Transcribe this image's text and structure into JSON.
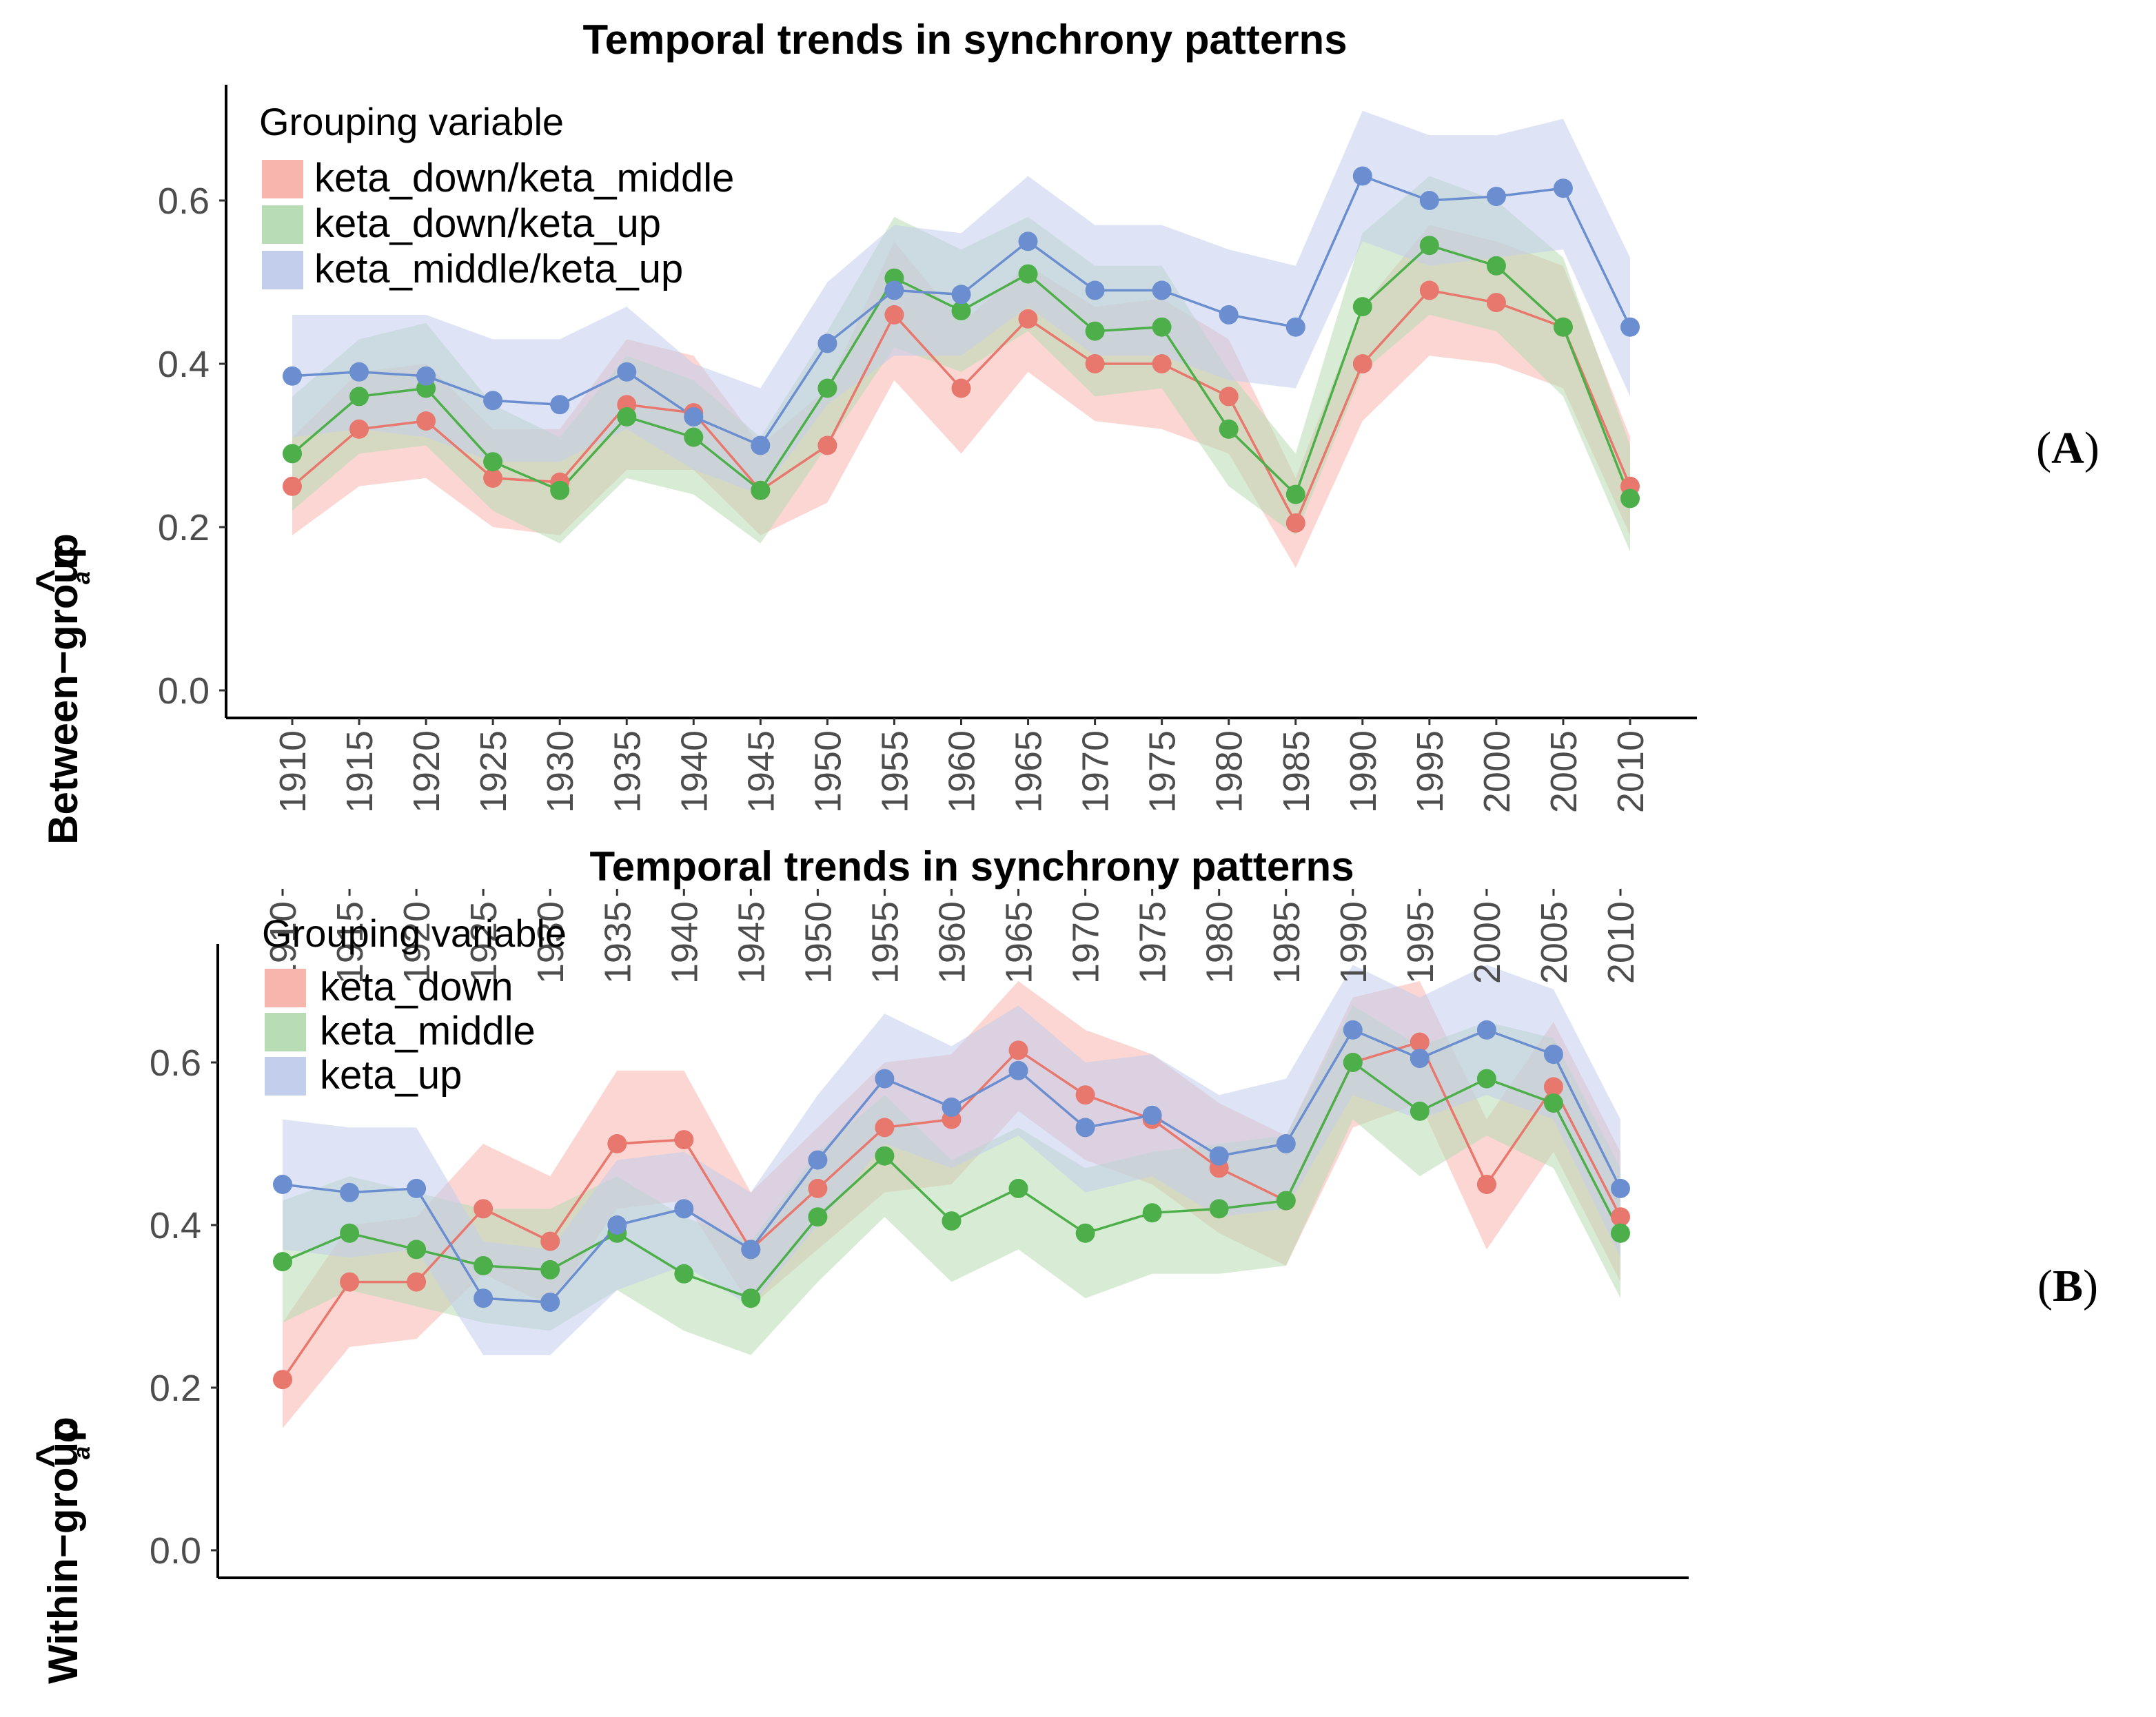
{
  "panels": [
    {
      "title": "Temporal trends in synchrony patterns",
      "ylabel": "Between−group",
      "ylabel_hat": "^",
      "ylabel_sub": "a",
      "ylabel_var": "c",
      "panel_label_open": "(",
      "panel_label_letter": "A",
      "panel_label_close": ")",
      "legend_title": "Grouping variable"
    },
    {
      "title": "Temporal trends in synchrony patterns",
      "ylabel": "Within−group",
      "ylabel_hat": "^",
      "ylabel_sub": "a",
      "ylabel_var": "c",
      "panel_label_open": "(",
      "panel_label_letter": "B",
      "panel_label_close": ")",
      "legend_title": "Grouping variable"
    }
  ],
  "chart_data": [
    {
      "type": "line",
      "title": "Temporal trends in synchrony patterns",
      "xlabel": "",
      "ylabel": "Between-group ac",
      "ylim": [
        -0.03,
        0.74
      ],
      "yticks": [
        "0.0",
        "0.2",
        "0.4",
        "0.6"
      ],
      "ytick_values": [
        0.0,
        0.2,
        0.4,
        0.6
      ],
      "legend_title": "Grouping variable",
      "legend_position": "top-left",
      "categories": [
        "1910",
        "1915",
        "1920",
        "1925",
        "1930",
        "1935",
        "1940",
        "1945",
        "1950",
        "1955",
        "1960",
        "1965",
        "1970",
        "1975",
        "1980",
        "1985",
        "1990",
        "1995",
        "2000",
        "2005",
        "2010"
      ],
      "series": [
        {
          "name": "keta_down/keta_middle",
          "line_color": "#e8776d",
          "band_color": "#f7b5ad",
          "values": [
            0.25,
            0.32,
            0.33,
            0.26,
            0.255,
            0.35,
            0.34,
            0.245,
            0.3,
            0.46,
            0.37,
            0.455,
            0.4,
            0.4,
            0.36,
            0.205,
            0.4,
            0.49,
            0.475,
            0.445,
            0.25
          ],
          "lower": [
            0.19,
            0.25,
            0.26,
            0.2,
            0.19,
            0.27,
            0.27,
            0.19,
            0.23,
            0.38,
            0.29,
            0.39,
            0.33,
            0.32,
            0.29,
            0.15,
            0.33,
            0.41,
            0.4,
            0.37,
            0.19
          ],
          "upper": [
            0.31,
            0.39,
            0.4,
            0.32,
            0.32,
            0.43,
            0.41,
            0.3,
            0.37,
            0.55,
            0.45,
            0.52,
            0.47,
            0.48,
            0.43,
            0.26,
            0.47,
            0.57,
            0.55,
            0.52,
            0.31
          ]
        },
        {
          "name": "keta_down/keta_up",
          "line_color": "#4daf4a",
          "band_color": "#b8dcb3",
          "values": [
            0.29,
            0.36,
            0.37,
            0.28,
            0.245,
            0.335,
            0.31,
            0.245,
            0.37,
            0.505,
            0.465,
            0.51,
            0.44,
            0.445,
            0.32,
            0.24,
            0.47,
            0.545,
            0.52,
            0.445,
            0.235
          ],
          "lower": [
            0.22,
            0.29,
            0.3,
            0.22,
            0.18,
            0.26,
            0.24,
            0.18,
            0.3,
            0.42,
            0.39,
            0.44,
            0.36,
            0.37,
            0.25,
            0.19,
            0.39,
            0.46,
            0.44,
            0.36,
            0.17
          ],
          "upper": [
            0.36,
            0.43,
            0.45,
            0.35,
            0.31,
            0.41,
            0.38,
            0.31,
            0.44,
            0.58,
            0.54,
            0.58,
            0.52,
            0.52,
            0.39,
            0.29,
            0.56,
            0.63,
            0.6,
            0.53,
            0.3
          ]
        },
        {
          "name": "keta_middle/keta_up",
          "line_color": "#6a8ecf",
          "band_color": "#c3cdec",
          "values": [
            0.385,
            0.39,
            0.385,
            0.355,
            0.35,
            0.39,
            0.335,
            0.3,
            0.425,
            0.49,
            0.485,
            0.55,
            0.49,
            0.49,
            0.46,
            0.445,
            0.63,
            0.6,
            0.605,
            0.615,
            0.445
          ],
          "lower": [
            0.31,
            0.32,
            0.31,
            0.28,
            0.28,
            0.32,
            0.27,
            0.24,
            0.35,
            0.41,
            0.41,
            0.47,
            0.41,
            0.41,
            0.38,
            0.37,
            0.55,
            0.52,
            0.53,
            0.54,
            0.36
          ],
          "upper": [
            0.46,
            0.46,
            0.46,
            0.43,
            0.43,
            0.47,
            0.4,
            0.37,
            0.5,
            0.57,
            0.56,
            0.63,
            0.57,
            0.57,
            0.54,
            0.52,
            0.71,
            0.68,
            0.68,
            0.7,
            0.53
          ]
        }
      ]
    },
    {
      "type": "line",
      "title": "Temporal trends in synchrony patterns",
      "xlabel": "",
      "ylabel": "Within-group ac",
      "ylim": [
        -0.03,
        0.74
      ],
      "yticks": [
        "0.0",
        "0.2",
        "0.4",
        "0.6"
      ],
      "ytick_values": [
        0.0,
        0.2,
        0.4,
        0.6
      ],
      "legend_title": "Grouping variable",
      "legend_position": "top-left",
      "categories": [
        "1910",
        "1915",
        "1920",
        "1925",
        "1930",
        "1935",
        "1940",
        "1945",
        "1950",
        "1955",
        "1960",
        "1965",
        "1970",
        "1975",
        "1980",
        "1985",
        "1990",
        "1995",
        "2000",
        "2005",
        "2010"
      ],
      "series": [
        {
          "name": "keta_down",
          "line_color": "#e8776d",
          "band_color": "#f7b5ad",
          "values": [
            0.21,
            0.33,
            0.33,
            0.42,
            0.38,
            0.5,
            0.505,
            0.37,
            0.445,
            0.52,
            0.53,
            0.615,
            0.56,
            0.53,
            0.47,
            0.43,
            0.6,
            0.625,
            0.45,
            0.57,
            0.41
          ],
          "lower": [
            0.15,
            0.25,
            0.26,
            0.34,
            0.3,
            0.42,
            0.43,
            0.3,
            0.37,
            0.44,
            0.45,
            0.54,
            0.48,
            0.45,
            0.39,
            0.35,
            0.52,
            0.55,
            0.37,
            0.49,
            0.33
          ],
          "upper": [
            0.28,
            0.4,
            0.41,
            0.5,
            0.46,
            0.59,
            0.59,
            0.44,
            0.52,
            0.6,
            0.61,
            0.7,
            0.64,
            0.61,
            0.55,
            0.51,
            0.68,
            0.7,
            0.53,
            0.65,
            0.49
          ]
        },
        {
          "name": "keta_middle",
          "line_color": "#4daf4a",
          "band_color": "#b8dcb3",
          "values": [
            0.355,
            0.39,
            0.37,
            0.35,
            0.345,
            0.39,
            0.34,
            0.31,
            0.41,
            0.485,
            0.405,
            0.445,
            0.39,
            0.415,
            0.42,
            0.43,
            0.6,
            0.54,
            0.58,
            0.55,
            0.39
          ],
          "lower": [
            0.28,
            0.32,
            0.3,
            0.28,
            0.27,
            0.32,
            0.27,
            0.24,
            0.33,
            0.41,
            0.33,
            0.37,
            0.31,
            0.34,
            0.34,
            0.35,
            0.53,
            0.46,
            0.51,
            0.47,
            0.31
          ],
          "upper": [
            0.43,
            0.46,
            0.44,
            0.42,
            0.42,
            0.46,
            0.41,
            0.38,
            0.49,
            0.56,
            0.48,
            0.52,
            0.47,
            0.49,
            0.5,
            0.51,
            0.67,
            0.62,
            0.65,
            0.63,
            0.47
          ]
        },
        {
          "name": "keta_up",
          "line_color": "#6a8ecf",
          "band_color": "#c3cdec",
          "values": [
            0.45,
            0.44,
            0.445,
            0.31,
            0.305,
            0.4,
            0.42,
            0.37,
            0.48,
            0.58,
            0.545,
            0.59,
            0.52,
            0.535,
            0.485,
            0.5,
            0.64,
            0.605,
            0.64,
            0.61,
            0.445
          ],
          "lower": [
            0.37,
            0.36,
            0.37,
            0.24,
            0.24,
            0.32,
            0.35,
            0.3,
            0.4,
            0.5,
            0.47,
            0.51,
            0.44,
            0.46,
            0.41,
            0.42,
            0.56,
            0.53,
            0.56,
            0.53,
            0.36
          ],
          "upper": [
            0.53,
            0.52,
            0.52,
            0.38,
            0.37,
            0.48,
            0.49,
            0.44,
            0.56,
            0.66,
            0.62,
            0.67,
            0.6,
            0.61,
            0.56,
            0.58,
            0.72,
            0.68,
            0.72,
            0.69,
            0.53
          ]
        }
      ]
    }
  ]
}
